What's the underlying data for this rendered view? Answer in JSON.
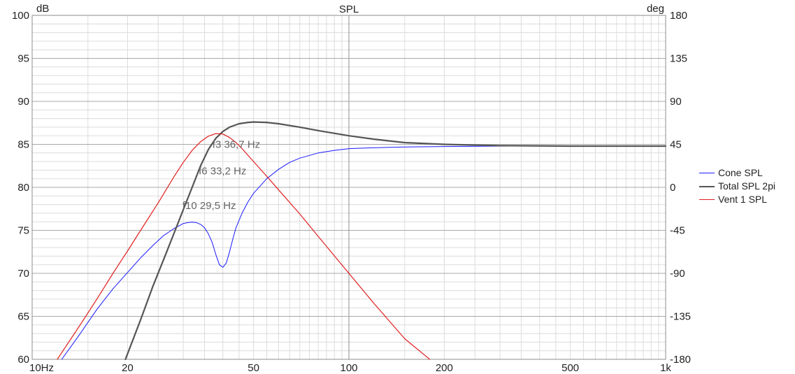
{
  "chart_data": {
    "type": "line",
    "title": "SPL",
    "left_unit": "dB",
    "right_unit": "deg",
    "x_scale": "log",
    "xlim": [
      10,
      1000
    ],
    "ylim": [
      60,
      100
    ],
    "y2lim": [
      -180,
      180
    ],
    "grid": true,
    "legend_position": "right",
    "x_ticks": [
      {
        "value": 10,
        "label": "10Hz"
      },
      {
        "value": 20,
        "label": "20"
      },
      {
        "value": 50,
        "label": "50"
      },
      {
        "value": 100,
        "label": "100"
      },
      {
        "value": 200,
        "label": "200"
      },
      {
        "value": 500,
        "label": "500"
      },
      {
        "value": 1000,
        "label": "1k"
      }
    ],
    "y_ticks": [
      {
        "value": 100,
        "label": "100"
      },
      {
        "value": 95,
        "label": "95"
      },
      {
        "value": 90,
        "label": "90"
      },
      {
        "value": 85,
        "label": "85"
      },
      {
        "value": 80,
        "label": "80"
      },
      {
        "value": 75,
        "label": "75"
      },
      {
        "value": 70,
        "label": "70"
      },
      {
        "value": 65,
        "label": "65"
      },
      {
        "value": 60,
        "label": "60"
      }
    ],
    "y2_ticks": [
      "180",
      "135",
      "90",
      "45",
      "0",
      "-45",
      "-90",
      "-135",
      "-180"
    ],
    "series": [
      {
        "name": "Cone SPL",
        "color": "#1a1aff",
        "width": 1,
        "x": [
          12.4,
          14,
          16,
          18,
          20,
          22,
          24,
          26,
          27,
          28,
          29,
          30,
          31,
          32,
          33,
          34,
          35,
          36,
          37,
          38,
          39,
          40,
          41,
          42,
          43,
          44,
          46,
          48,
          50,
          55,
          60,
          65,
          70,
          80,
          90,
          100,
          120,
          150,
          200,
          300,
          500,
          1000
        ],
        "values": [
          60,
          62.7,
          65.8,
          68.2,
          70.1,
          71.8,
          73.2,
          74.4,
          74.8,
          75.2,
          75.5,
          75.8,
          75.9,
          75.95,
          75.9,
          75.7,
          75.3,
          74.6,
          73.6,
          72.2,
          71.0,
          70.7,
          71.2,
          72.5,
          74.0,
          75.3,
          77.0,
          78.3,
          79.3,
          81.0,
          82.1,
          82.9,
          83.4,
          84.0,
          84.3,
          84.5,
          84.6,
          84.7,
          84.75,
          84.8,
          84.8,
          84.8
        ]
      },
      {
        "name": "Total SPL 2pi",
        "color": "#555555",
        "width": 2.2,
        "x": [
          19.7,
          22,
          24,
          26,
          28,
          30,
          32,
          34,
          36,
          38,
          40,
          42,
          45,
          48,
          50,
          55,
          60,
          70,
          80,
          100,
          120,
          150,
          200,
          300,
          500,
          1000
        ],
        "values": [
          60,
          64.6,
          68.4,
          71.6,
          74.6,
          77.4,
          80.0,
          82.5,
          84.4,
          85.7,
          86.5,
          87.0,
          87.4,
          87.55,
          87.6,
          87.55,
          87.4,
          87.0,
          86.6,
          86.0,
          85.6,
          85.2,
          85.0,
          84.85,
          84.8,
          84.8
        ]
      },
      {
        "name": "Vent 1 SPL",
        "color": "#e02020",
        "width": 1.2,
        "x": [
          12.0,
          14,
          16,
          18,
          20,
          22,
          25,
          28,
          30,
          32,
          34,
          36,
          38,
          40,
          42,
          44,
          46,
          50,
          55,
          60,
          70,
          80,
          100,
          120,
          150,
          180
        ],
        "values": [
          60,
          63.7,
          67.0,
          70.0,
          72.6,
          75.0,
          78.2,
          81.2,
          82.9,
          84.3,
          85.3,
          85.95,
          86.25,
          86.2,
          85.8,
          85.2,
          84.5,
          83.0,
          81.3,
          79.7,
          76.9,
          74.3,
          70.0,
          66.5,
          62.4,
          60
        ]
      }
    ],
    "annotations": [
      {
        "text": "f3 36,7 Hz",
        "x": 36.7,
        "y": 85.0
      },
      {
        "text": "f6 33,2 Hz",
        "x": 33.2,
        "y": 81.9
      },
      {
        "text": "f10 29,5 Hz",
        "x": 29.5,
        "y": 77.9
      }
    ]
  }
}
